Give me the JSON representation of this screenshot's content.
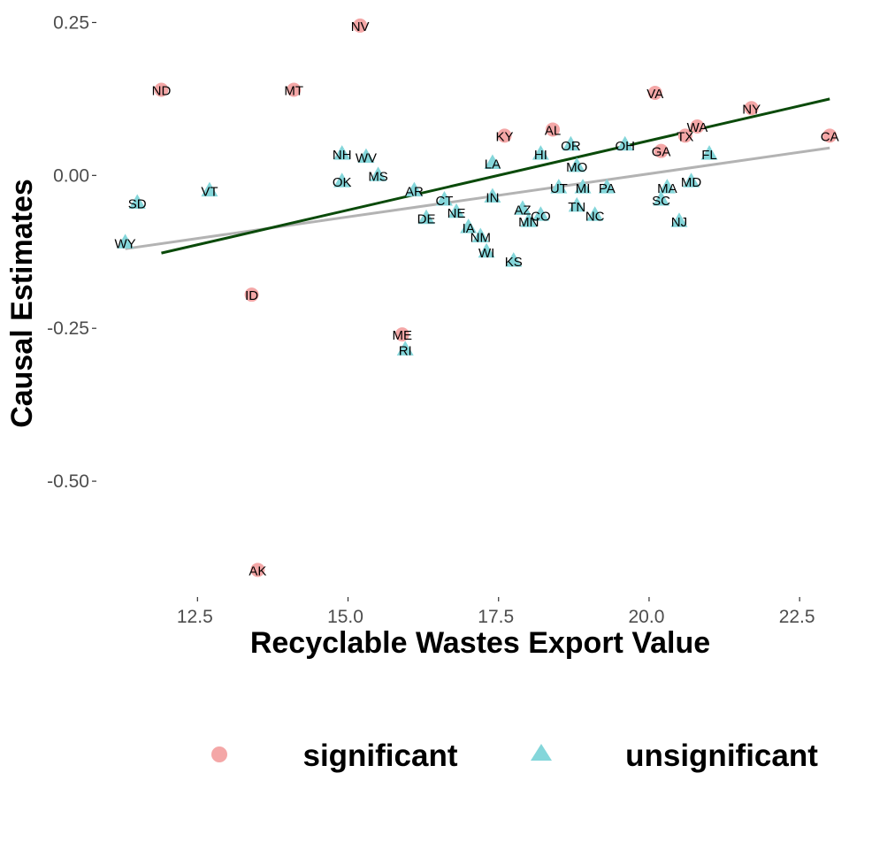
{
  "chart_data": {
    "type": "scatter",
    "title": "",
    "xlabel": "Recyclable Wastes Export Value",
    "ylabel": "Causal Estimates",
    "xlim": [
      11.1,
      23.1
    ],
    "ylim": [
      -0.685,
      0.255
    ],
    "x_ticks": [
      12.5,
      15.0,
      17.5,
      20.0,
      22.5
    ],
    "x_tick_labels": [
      "12.5",
      "15.0",
      "17.5",
      "20.0",
      "22.5"
    ],
    "y_ticks": [
      0.25,
      0.0,
      -0.25,
      -0.5
    ],
    "y_tick_labels": [
      "0.25",
      "0.00",
      "-0.25",
      "-0.50"
    ],
    "grid": false,
    "legend_position": "bottom",
    "colors": {
      "significant": "#f4a7a7",
      "unsignificant": "#84d6da",
      "fit_line": "#0a4a0a",
      "reference_line": "#b3b3b3"
    },
    "series": [
      {
        "name": "significant",
        "marker": "circle",
        "points": [
          {
            "label": "NV",
            "x": 15.2,
            "y": 0.245
          },
          {
            "label": "ND",
            "x": 11.9,
            "y": 0.14
          },
          {
            "label": "MT",
            "x": 14.1,
            "y": 0.14
          },
          {
            "label": "VA",
            "x": 20.1,
            "y": 0.135
          },
          {
            "label": "NY",
            "x": 21.7,
            "y": 0.11
          },
          {
            "label": "WA",
            "x": 20.8,
            "y": 0.08
          },
          {
            "label": "AL",
            "x": 18.4,
            "y": 0.075
          },
          {
            "label": "TX",
            "x": 20.6,
            "y": 0.065
          },
          {
            "label": "KY",
            "x": 17.6,
            "y": 0.065
          },
          {
            "label": "CA",
            "x": 23.0,
            "y": 0.065
          },
          {
            "label": "GA",
            "x": 20.2,
            "y": 0.04
          },
          {
            "label": "ID",
            "x": 13.4,
            "y": -0.195
          },
          {
            "label": "ME",
            "x": 15.9,
            "y": -0.26
          },
          {
            "label": "AK",
            "x": 13.5,
            "y": -0.645
          }
        ]
      },
      {
        "name": "unsignificant",
        "marker": "triangle",
        "points": [
          {
            "label": "OR",
            "x": 18.7,
            "y": 0.05
          },
          {
            "label": "OH",
            "x": 19.6,
            "y": 0.05
          },
          {
            "label": "HI",
            "x": 18.2,
            "y": 0.035
          },
          {
            "label": "NH",
            "x": 14.9,
            "y": 0.035
          },
          {
            "label": "FL",
            "x": 21.0,
            "y": 0.035
          },
          {
            "label": "WV",
            "x": 15.3,
            "y": 0.03
          },
          {
            "label": "LA",
            "x": 17.4,
            "y": 0.02
          },
          {
            "label": "MO",
            "x": 18.8,
            "y": 0.015
          },
          {
            "label": "MS",
            "x": 15.5,
            "y": 0.0
          },
          {
            "label": "OK",
            "x": 14.9,
            "y": -0.01
          },
          {
            "label": "MD",
            "x": 20.7,
            "y": -0.01
          },
          {
            "label": "MI",
            "x": 18.9,
            "y": -0.02
          },
          {
            "label": "UT",
            "x": 18.5,
            "y": -0.02
          },
          {
            "label": "PA",
            "x": 19.3,
            "y": -0.02
          },
          {
            "label": "MA",
            "x": 20.3,
            "y": -0.02
          },
          {
            "label": "AR",
            "x": 16.1,
            "y": -0.025
          },
          {
            "label": "VT",
            "x": 12.7,
            "y": -0.025
          },
          {
            "label": "IN",
            "x": 17.4,
            "y": -0.035
          },
          {
            "label": "CT",
            "x": 16.6,
            "y": -0.04
          },
          {
            "label": "SC",
            "x": 20.2,
            "y": -0.04
          },
          {
            "label": "SD",
            "x": 11.5,
            "y": -0.045
          },
          {
            "label": "TN",
            "x": 18.8,
            "y": -0.05
          },
          {
            "label": "AZ",
            "x": 17.9,
            "y": -0.055
          },
          {
            "label": "NE",
            "x": 16.8,
            "y": -0.06
          },
          {
            "label": "CO",
            "x": 18.2,
            "y": -0.065
          },
          {
            "label": "NC",
            "x": 19.1,
            "y": -0.065
          },
          {
            "label": "DE",
            "x": 16.3,
            "y": -0.07
          },
          {
            "label": "MN",
            "x": 18.0,
            "y": -0.075
          },
          {
            "label": "NJ",
            "x": 20.5,
            "y": -0.075
          },
          {
            "label": "IA",
            "x": 17.0,
            "y": -0.085
          },
          {
            "label": "NM",
            "x": 17.2,
            "y": -0.1
          },
          {
            "label": "WY",
            "x": 11.3,
            "y": -0.11
          },
          {
            "label": "WI",
            "x": 17.3,
            "y": -0.125
          },
          {
            "label": "KS",
            "x": 17.75,
            "y": -0.14
          },
          {
            "label": "RI",
            "x": 15.95,
            "y": -0.285
          }
        ]
      }
    ],
    "lines": [
      {
        "name": "fit_line",
        "x": [
          11.9,
          23.0
        ],
        "y": [
          -0.127,
          0.125
        ]
      },
      {
        "name": "reference_line",
        "x": [
          11.3,
          23.0
        ],
        "y": [
          -0.12,
          0.045
        ]
      }
    ]
  },
  "legend": {
    "items": [
      {
        "label": "significant",
        "marker": "circle"
      },
      {
        "label": "unsignificant",
        "marker": "triangle"
      }
    ]
  }
}
